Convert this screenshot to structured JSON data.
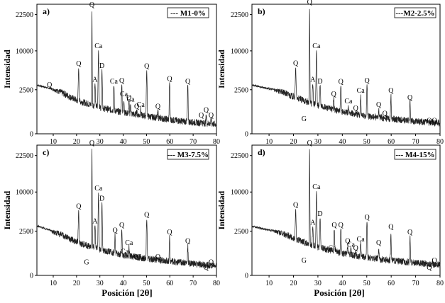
{
  "figure": {
    "xlabel": "Posición [2θ]",
    "ylabel": "Intensidad"
  },
  "chart_data": [
    {
      "type": "line",
      "panel_label": "a)",
      "legend": "--- M1-0%",
      "xlabel": "Posición [2θ]",
      "ylabel": "Intensidad",
      "xlim": [
        3,
        80
      ],
      "ylim": [
        0,
        25000
      ],
      "x_ticks": [
        10,
        20,
        30,
        40,
        50,
        60,
        70,
        80
      ],
      "y_ticks": [
        0,
        2500,
        10000,
        22500
      ],
      "baseline": [
        [
          3,
          3400
        ],
        [
          10,
          2600
        ],
        [
          20,
          1900
        ],
        [
          30,
          1500
        ],
        [
          40,
          1200
        ],
        [
          50,
          1000
        ],
        [
          60,
          800
        ],
        [
          70,
          650
        ],
        [
          80,
          550
        ]
      ],
      "peaks": [
        {
          "x": 8.4,
          "y": 2600,
          "label": "Q"
        },
        {
          "x": 20.9,
          "y": 6700,
          "label": "Q"
        },
        {
          "x": 26.6,
          "y": 23800,
          "label": "Q"
        },
        {
          "x": 27.9,
          "y": 3600,
          "label": "A"
        },
        {
          "x": 29.4,
          "y": 10200,
          "label": "Ca"
        },
        {
          "x": 30.9,
          "y": 6300,
          "label": "D"
        },
        {
          "x": 36.0,
          "y": 3300,
          "label": "Ca"
        },
        {
          "x": 39.4,
          "y": 3400,
          "label": "Q"
        },
        {
          "x": 40.3,
          "y": 2000,
          "label": "Ca"
        },
        {
          "x": 42.5,
          "y": 1800,
          "label": "Q"
        },
        {
          "x": 43.2,
          "y": 1700,
          "label": "Ca"
        },
        {
          "x": 45.8,
          "y": 1300,
          "label": "Q"
        },
        {
          "x": 47.5,
          "y": 1400,
          "label": "Ca"
        },
        {
          "x": 50.1,
          "y": 6200,
          "label": "Q"
        },
        {
          "x": 54.9,
          "y": 1300,
          "label": "Q"
        },
        {
          "x": 59.9,
          "y": 3800,
          "label": "Q"
        },
        {
          "x": 67.7,
          "y": 3300,
          "label": "Q"
        },
        {
          "x": 73.5,
          "y": 800,
          "label": "Q"
        },
        {
          "x": 75.6,
          "y": 1100,
          "label": "Q"
        },
        {
          "x": 77.7,
          "y": 800,
          "label": "Q"
        }
      ]
    },
    {
      "type": "line",
      "panel_label": "b)",
      "legend": "---M2-2.5%",
      "xlabel": "Posición [2θ]",
      "ylabel": "Intensidad",
      "xlim": [
        3,
        80
      ],
      "ylim": [
        0,
        25000
      ],
      "x_ticks": [
        10,
        20,
        30,
        40,
        50,
        60,
        70,
        80
      ],
      "y_ticks": [
        0,
        2500,
        10000,
        22500
      ],
      "baseline": [
        [
          3,
          3400
        ],
        [
          10,
          2700
        ],
        [
          20,
          2100
        ],
        [
          30,
          1600
        ],
        [
          40,
          1250
        ],
        [
          50,
          1000
        ],
        [
          60,
          850
        ],
        [
          70,
          700
        ],
        [
          80,
          600
        ]
      ],
      "peaks": [
        {
          "x": 20.9,
          "y": 6800,
          "label": "Q"
        },
        {
          "x": 24.3,
          "y": 600,
          "label": "G"
        },
        {
          "x": 26.6,
          "y": 24500,
          "label": "Q"
        },
        {
          "x": 27.9,
          "y": 3600,
          "label": "A"
        },
        {
          "x": 29.4,
          "y": 10200,
          "label": "Ca"
        },
        {
          "x": 30.9,
          "y": 3300,
          "label": "D"
        },
        {
          "x": 36.5,
          "y": 2000,
          "label": "Q"
        },
        {
          "x": 39.4,
          "y": 3200,
          "label": "Q"
        },
        {
          "x": 42.5,
          "y": 1600,
          "label": "Ca"
        },
        {
          "x": 45.5,
          "y": 1200,
          "label": "Q"
        },
        {
          "x": 47.5,
          "y": 2200,
          "label": "Ca"
        },
        {
          "x": 50.1,
          "y": 3400,
          "label": "Q"
        },
        {
          "x": 54.9,
          "y": 1400,
          "label": "Q"
        },
        {
          "x": 57.4,
          "y": 900,
          "label": "Q"
        },
        {
          "x": 59.9,
          "y": 2200,
          "label": "Q"
        },
        {
          "x": 67.7,
          "y": 1800,
          "label": "Q"
        },
        {
          "x": 75.6,
          "y": 500,
          "label": "Q"
        },
        {
          "x": 77.7,
          "y": 500,
          "label": "Q"
        }
      ]
    },
    {
      "type": "line",
      "panel_label": "c)",
      "legend": "--- M3-7.5%",
      "xlabel": "Posición [2θ]",
      "ylabel": "Intensidad",
      "xlim": [
        3,
        80
      ],
      "ylim": [
        0,
        25000
      ],
      "x_ticks": [
        10,
        20,
        30,
        40,
        50,
        60,
        70,
        80
      ],
      "y_ticks": [
        0,
        2500,
        10000,
        22500
      ],
      "baseline": [
        [
          3,
          3500
        ],
        [
          10,
          2500
        ],
        [
          20,
          1900
        ],
        [
          30,
          1450
        ],
        [
          40,
          1150
        ],
        [
          50,
          950
        ],
        [
          60,
          800
        ],
        [
          70,
          650
        ],
        [
          80,
          550
        ]
      ],
      "peaks": [
        {
          "x": 20.9,
          "y": 6400,
          "label": "Q"
        },
        {
          "x": 24.3,
          "y": 500,
          "label": "G"
        },
        {
          "x": 26.6,
          "y": 24500,
          "label": "Q"
        },
        {
          "x": 27.9,
          "y": 3600,
          "label": "A"
        },
        {
          "x": 29.4,
          "y": 9900,
          "label": "Ca"
        },
        {
          "x": 30.9,
          "y": 7900,
          "label": "D"
        },
        {
          "x": 36.5,
          "y": 2300,
          "label": "Q"
        },
        {
          "x": 39.4,
          "y": 2800,
          "label": "Q"
        },
        {
          "x": 40.6,
          "y": 1100,
          "label": "Ca"
        },
        {
          "x": 42.5,
          "y": 1600,
          "label": "Ca"
        },
        {
          "x": 45.5,
          "y": 800,
          "label": "Q"
        },
        {
          "x": 47.5,
          "y": 800,
          "label": "Ca"
        },
        {
          "x": 50.1,
          "y": 4800,
          "label": "Q"
        },
        {
          "x": 54.9,
          "y": 800,
          "label": "Q"
        },
        {
          "x": 59.9,
          "y": 2200,
          "label": "Q"
        },
        {
          "x": 67.7,
          "y": 1700,
          "label": "Q"
        },
        {
          "x": 75.6,
          "y": 200,
          "label": "Q"
        },
        {
          "x": 77.7,
          "y": 500,
          "label": "Q"
        }
      ]
    },
    {
      "type": "line",
      "panel_label": "d)",
      "legend": "--- M4-15%",
      "xlabel": "Posición [2θ]",
      "ylabel": "Intensidad",
      "xlim": [
        3,
        80
      ],
      "ylim": [
        0,
        25000
      ],
      "x_ticks": [
        10,
        20,
        30,
        40,
        50,
        60,
        70,
        80
      ],
      "y_ticks": [
        0,
        2500,
        10000,
        22500
      ],
      "baseline": [
        [
          3,
          3400
        ],
        [
          10,
          2700
        ],
        [
          20,
          2100
        ],
        [
          30,
          1600
        ],
        [
          40,
          1250
        ],
        [
          50,
          1000
        ],
        [
          60,
          850
        ],
        [
          70,
          700
        ],
        [
          80,
          600
        ]
      ],
      "peaks": [
        {
          "x": 20.9,
          "y": 6700,
          "label": "Q"
        },
        {
          "x": 24.3,
          "y": 600,
          "label": "G"
        },
        {
          "x": 26.6,
          "y": 24500,
          "label": "Q"
        },
        {
          "x": 27.9,
          "y": 3300,
          "label": "A"
        },
        {
          "x": 29.4,
          "y": 10300,
          "label": "Ca"
        },
        {
          "x": 30.9,
          "y": 5000,
          "label": "D"
        },
        {
          "x": 35.8,
          "y": 1300,
          "label": "Ca"
        },
        {
          "x": 36.7,
          "y": 2800,
          "label": "Q"
        },
        {
          "x": 39.4,
          "y": 2800,
          "label": "Q"
        },
        {
          "x": 42.2,
          "y": 1700,
          "label": "Q"
        },
        {
          "x": 43.5,
          "y": 1500,
          "label": "Ca"
        },
        {
          "x": 45.5,
          "y": 1300,
          "label": "Q"
        },
        {
          "x": 47.5,
          "y": 1800,
          "label": "Ca"
        },
        {
          "x": 50.1,
          "y": 4300,
          "label": "Q"
        },
        {
          "x": 54.9,
          "y": 1600,
          "label": "Q"
        },
        {
          "x": 59.9,
          "y": 2500,
          "label": "Q"
        },
        {
          "x": 67.7,
          "y": 2200,
          "label": "Q"
        },
        {
          "x": 75.6,
          "y": 200,
          "label": "Q"
        },
        {
          "x": 77.7,
          "y": 600,
          "label": "Q"
        }
      ]
    }
  ]
}
